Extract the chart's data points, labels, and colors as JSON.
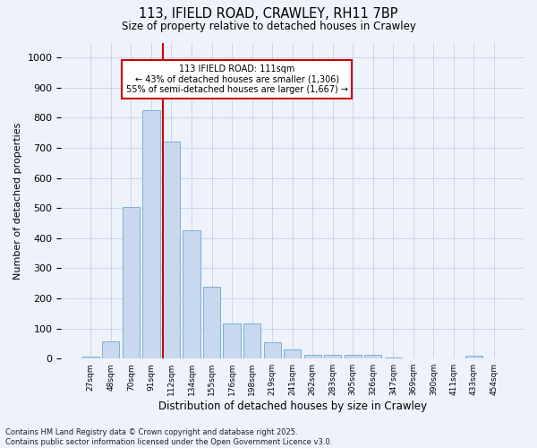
{
  "title1": "113, IFIELD ROAD, CRAWLEY, RH11 7BP",
  "title2": "Size of property relative to detached houses in Crawley",
  "xlabel": "Distribution of detached houses by size in Crawley",
  "ylabel": "Number of detached properties",
  "categories": [
    "27sqm",
    "48sqm",
    "70sqm",
    "91sqm",
    "112sqm",
    "134sqm",
    "155sqm",
    "176sqm",
    "198sqm",
    "219sqm",
    "241sqm",
    "262sqm",
    "283sqm",
    "305sqm",
    "326sqm",
    "347sqm",
    "369sqm",
    "390sqm",
    "411sqm",
    "433sqm",
    "454sqm"
  ],
  "values": [
    8,
    57,
    505,
    825,
    722,
    425,
    238,
    116,
    116,
    55,
    30,
    14,
    12,
    12,
    12,
    5,
    0,
    0,
    0,
    10,
    0
  ],
  "bar_color": "#c8d9ef",
  "bar_edge_color": "#7bafd4",
  "property_line_label": "113 IFIELD ROAD: 111sqm",
  "annotation_line1": "← 43% of detached houses are smaller (1,306)",
  "annotation_line2": "55% of semi-detached houses are larger (1,667) →",
  "annotation_box_color": "#ffffff",
  "annotation_box_edge": "#cc0000",
  "vline_color": "#cc0000",
  "ylim": [
    0,
    1050
  ],
  "yticks": [
    0,
    100,
    200,
    300,
    400,
    500,
    600,
    700,
    800,
    900,
    1000
  ],
  "footer1": "Contains HM Land Registry data © Crown copyright and database right 2025.",
  "footer2": "Contains public sector information licensed under the Open Government Licence v3.0.",
  "background_color": "#eef2fb",
  "grid_color": "#c8cfe8"
}
